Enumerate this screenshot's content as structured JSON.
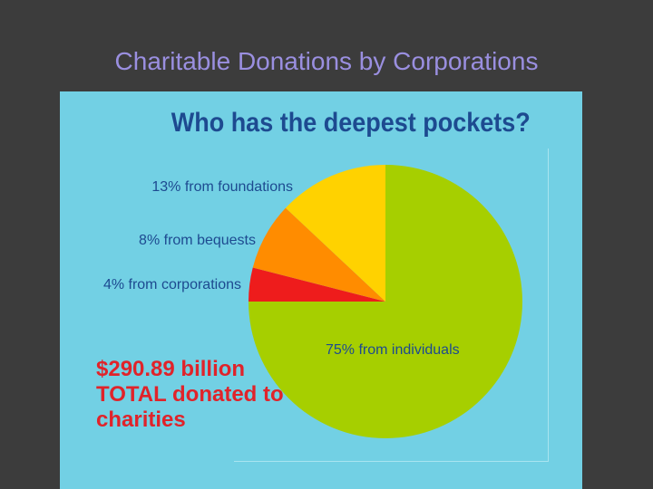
{
  "slide": {
    "title": "Charitable Donations by Corporations"
  },
  "chart_data": {
    "type": "pie",
    "title": "Who has the deepest pockets?",
    "slices": [
      {
        "label": "75% from individuals",
        "value": 75,
        "color": "#a6cf00"
      },
      {
        "label": "4% from corporations",
        "value": 4,
        "color": "#ee1c1c"
      },
      {
        "label": "8% from bequests",
        "value": 8,
        "color": "#ff8c00"
      },
      {
        "label": "13% from foundations",
        "value": 13,
        "color": "#ffd200"
      }
    ],
    "annotation": [
      "$290.89 billion",
      "TOTAL donated to",
      "charities"
    ]
  }
}
